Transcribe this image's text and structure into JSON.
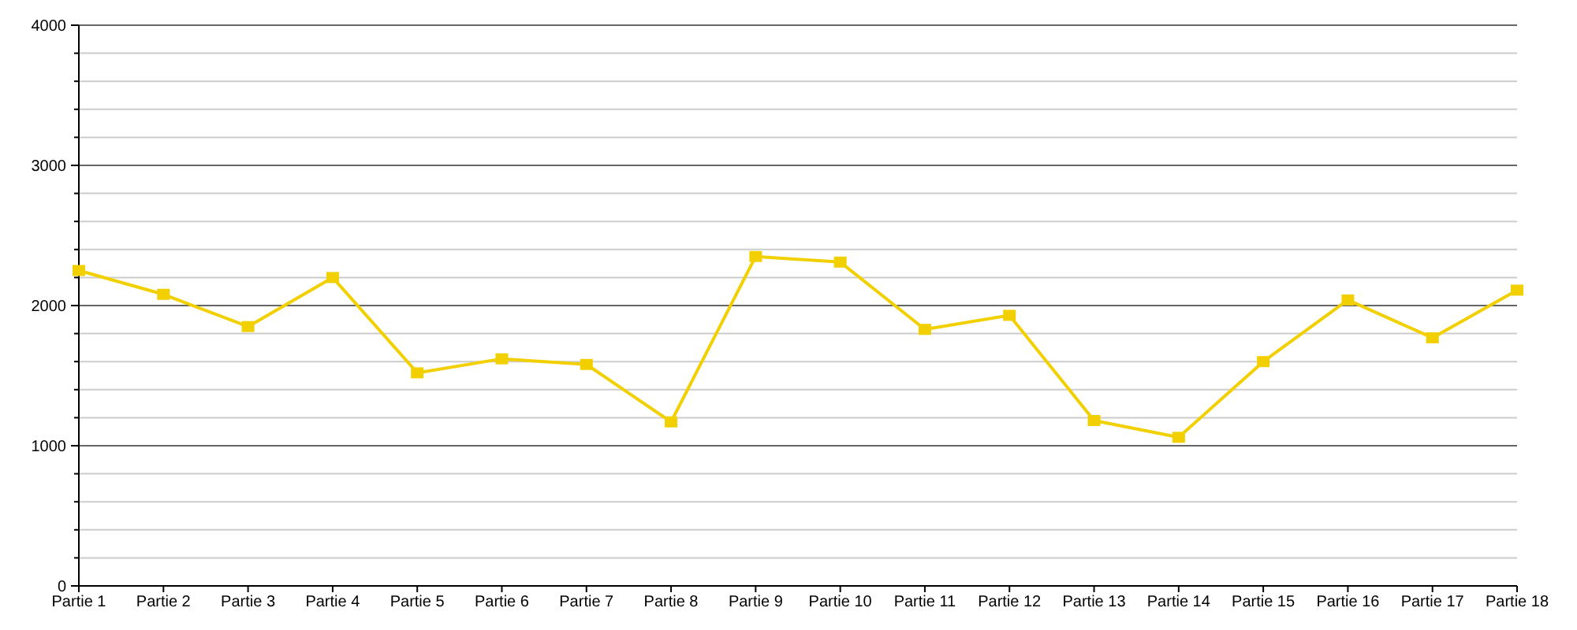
{
  "chart_data": {
    "type": "line",
    "categories": [
      "Partie 1",
      "Partie 2",
      "Partie 3",
      "Partie 4",
      "Partie 5",
      "Partie 6",
      "Partie 7",
      "Partie 8",
      "Partie 9",
      "Partie 10",
      "Partie 11",
      "Partie 12",
      "Partie 13",
      "Partie 14",
      "Partie 15",
      "Partie 16",
      "Partie 17",
      "Partie 18"
    ],
    "series": [
      {
        "color": "#f2d000",
        "values": [
          2250,
          2080,
          1850,
          2200,
          1520,
          1620,
          1580,
          1170,
          2350,
          2310,
          1830,
          1930,
          1180,
          1060,
          1600,
          2040,
          1770,
          2110
        ]
      }
    ],
    "ylim": [
      0,
      4000
    ],
    "yticks": [
      0,
      {
        "value": 200,
        "label": null
      },
      {
        "value": 400,
        "label": null
      },
      {
        "value": 600,
        "label": null
      },
      {
        "value": 800,
        "label": null
      },
      1000,
      {
        "value": 1200,
        "label": null
      },
      {
        "value": 1400,
        "label": null
      },
      {
        "value": 1600,
        "label": null
      },
      {
        "value": 1800,
        "label": null
      },
      2000,
      {
        "value": 2200,
        "label": null
      },
      {
        "value": 2400,
        "label": null
      },
      {
        "value": 2600,
        "label": null
      },
      {
        "value": 2800,
        "label": null
      },
      3000,
      {
        "value": 3200,
        "label": null
      },
      {
        "value": 3400,
        "label": null
      },
      {
        "value": 3600,
        "label": null
      },
      {
        "value": 3800,
        "label": null
      },
      4000
    ],
    "grid": true,
    "marker": "square",
    "line_style": "solid"
  }
}
